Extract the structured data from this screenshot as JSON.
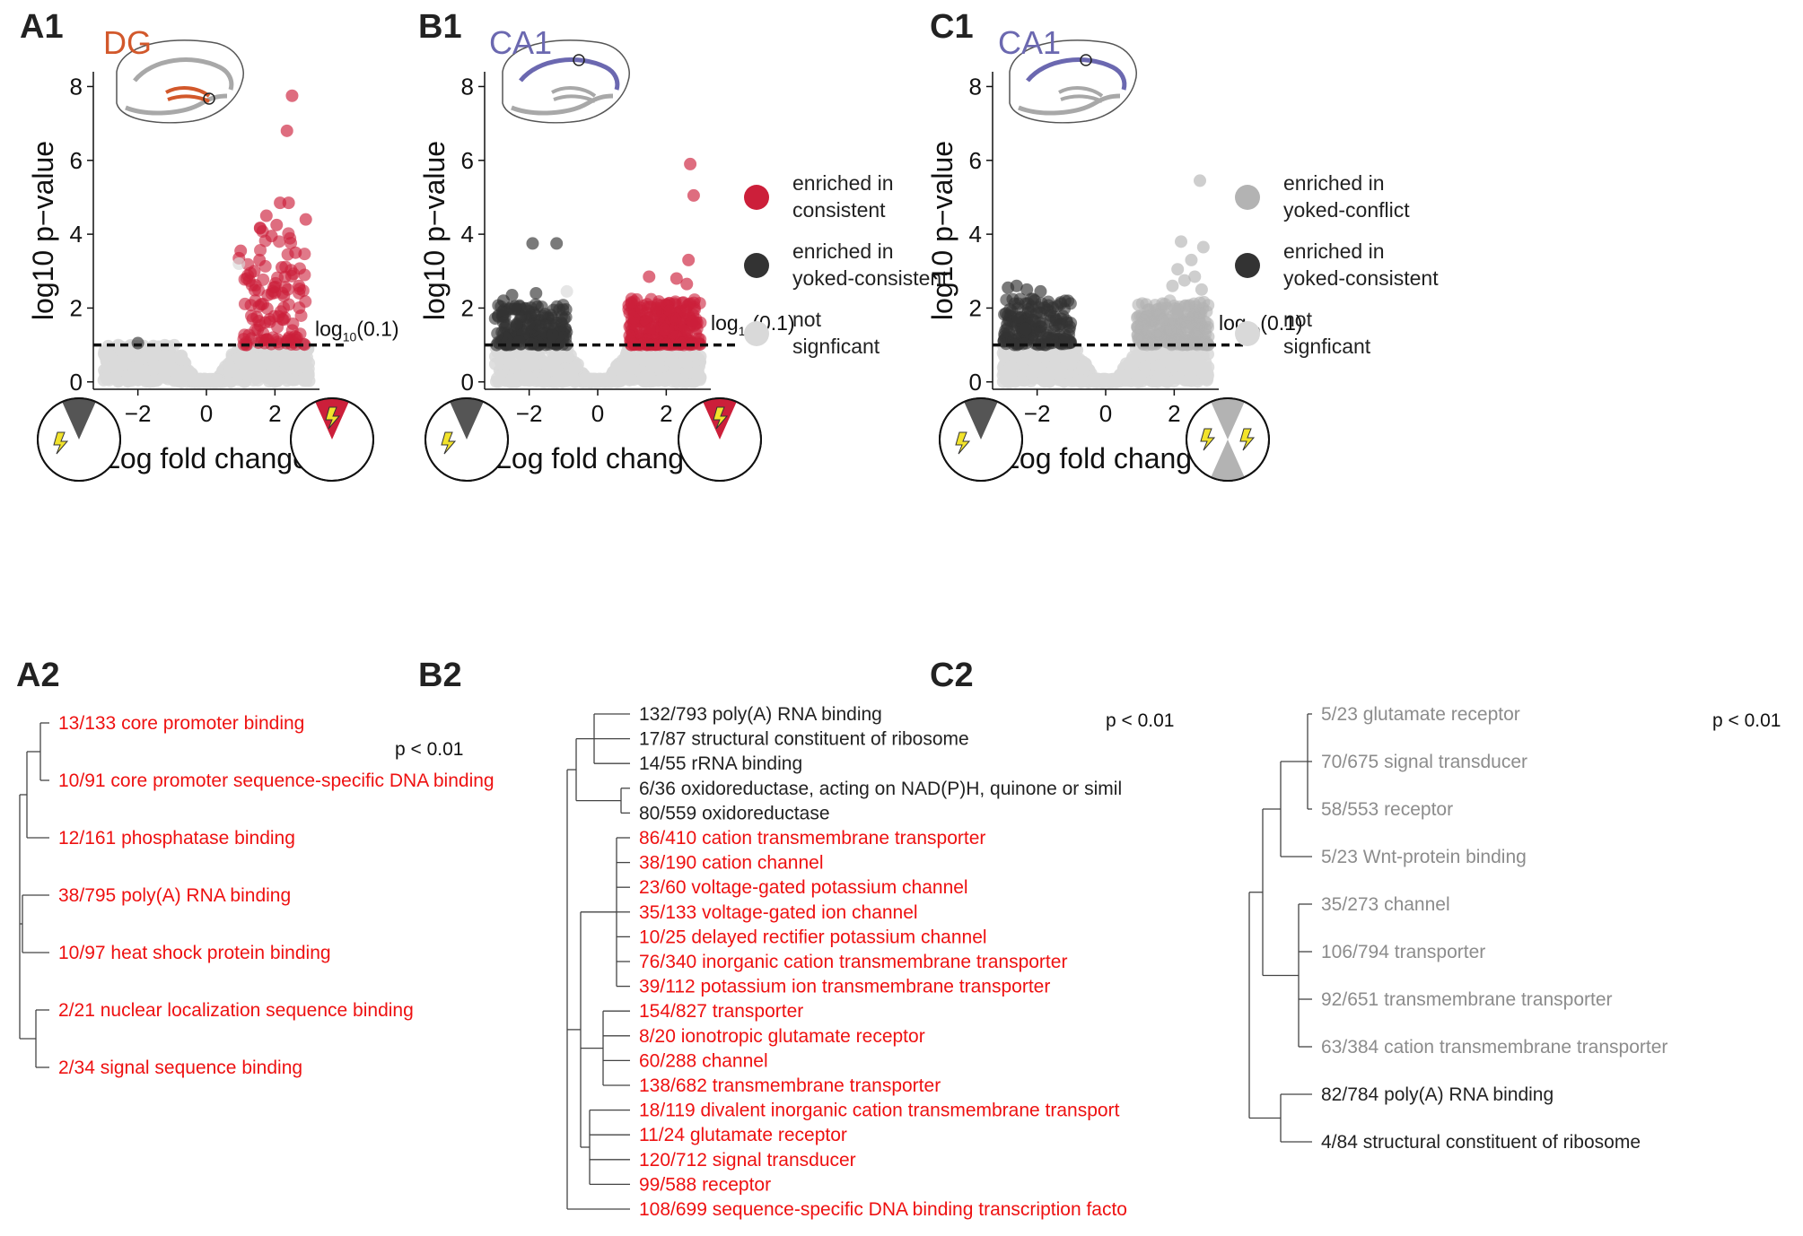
{
  "colors": {
    "red": "#cc1f3a",
    "red_text": "#ee1111",
    "dark": "#333333",
    "light": "#d9d9d9",
    "mid_gray": "#b3b3b3",
    "gray_text": "#8c8c8c",
    "dg": "#d2582b",
    "ca1": "#6b68b0",
    "bolt": "#f2e32b"
  },
  "threshold_label_base": "log",
  "threshold_label_sub": "10",
  "threshold_label_arg": "(0.1)",
  "volcano": [
    {
      "id": "A1",
      "letter": "A1",
      "region": "DG",
      "region_color": "dg",
      "chart_data": {
        "type": "scatter",
        "xlabel": "Log fold change",
        "ylabel": "log10 p−value",
        "xlim": [
          -3.3,
          3.3
        ],
        "ylim": [
          -0.2,
          8.4
        ],
        "xticks": [
          -2,
          0,
          2
        ],
        "yticks": [
          0,
          2,
          4,
          6,
          8
        ],
        "threshold": 1,
        "background": "symmetric-left-right",
        "left_enriched": "none",
        "right_enriched": "red",
        "right_class_cloud": "none",
        "highlighted_points": [
          {
            "x": 2.5,
            "y": 7.75,
            "c": "red"
          },
          {
            "x": 2.35,
            "y": 6.8,
            "c": "red"
          },
          {
            "x": 1.75,
            "y": 4.5,
            "c": "red"
          },
          {
            "x": 2.15,
            "y": 4.85,
            "c": "red"
          },
          {
            "x": 2.4,
            "y": 4.85,
            "c": "red"
          },
          {
            "x": 2.9,
            "y": 4.4,
            "c": "red"
          },
          {
            "x": 1.0,
            "y": 3.55,
            "c": "red"
          },
          {
            "x": 1.55,
            "y": 3.3,
            "c": "red"
          },
          {
            "x": 2.05,
            "y": 4.25,
            "c": "red"
          },
          {
            "x": 2.6,
            "y": 3.5,
            "c": "red"
          },
          {
            "x": 1.9,
            "y": 3.95,
            "c": "red"
          },
          {
            "x": 1.4,
            "y": 3.0,
            "c": "red"
          },
          {
            "x": 2.2,
            "y": 3.1,
            "c": "red"
          },
          {
            "x": 0.95,
            "y": 3.35,
            "c": "red"
          },
          {
            "x": 1.6,
            "y": 2.1,
            "c": "red"
          },
          {
            "x": 2.7,
            "y": 2.6,
            "c": "red"
          },
          {
            "x": -2.0,
            "y": 1.05,
            "c": "dark"
          },
          {
            "x": 0.95,
            "y": 3.2,
            "c": "light"
          }
        ],
        "red_cloud": {
          "xmin": 1.05,
          "xmax": 2.9,
          "ymin": 1.0,
          "ymax": 4.2,
          "n": 110,
          "seed": 11
        },
        "dark_cloud": null,
        "mid_cloud": null
      },
      "legend": null,
      "left_pie": {
        "wedge": "dark",
        "bolt": "left"
      },
      "right_pie": {
        "wedge": "red",
        "bolt": "inside"
      }
    },
    {
      "id": "B1",
      "letter": "B1",
      "region": "CA1",
      "region_color": "ca1",
      "chart_data": {
        "type": "scatter",
        "xlabel": "Log fold change",
        "ylabel": "log10 p−value",
        "xlim": [
          -3.3,
          3.3
        ],
        "ylim": [
          -0.2,
          8.4
        ],
        "xticks": [
          -2,
          0,
          2
        ],
        "yticks": [
          0,
          2,
          4,
          6,
          8
        ],
        "threshold": 1,
        "highlighted_points": [
          {
            "x": 2.7,
            "y": 5.9,
            "c": "red"
          },
          {
            "x": 2.8,
            "y": 5.05,
            "c": "red"
          },
          {
            "x": 2.65,
            "y": 3.3,
            "c": "red"
          },
          {
            "x": 2.3,
            "y": 2.8,
            "c": "red"
          },
          {
            "x": 1.5,
            "y": 2.85,
            "c": "red"
          },
          {
            "x": 2.6,
            "y": 2.65,
            "c": "red"
          },
          {
            "x": 2.9,
            "y": 1.6,
            "c": "red"
          },
          {
            "x": -1.9,
            "y": 3.75,
            "c": "dark"
          },
          {
            "x": -1.2,
            "y": 3.75,
            "c": "dark"
          },
          {
            "x": -2.5,
            "y": 2.35,
            "c": "dark"
          },
          {
            "x": -1.8,
            "y": 2.4,
            "c": "dark"
          },
          {
            "x": -2.75,
            "y": 2.2,
            "c": "dark"
          },
          {
            "x": -0.9,
            "y": 2.45,
            "c": "light"
          }
        ],
        "red_cloud": {
          "xmin": 0.9,
          "xmax": 3.0,
          "ymin": 1.0,
          "ymax": 2.25,
          "n": 260,
          "seed": 23
        },
        "dark_cloud": {
          "xmin": -3.0,
          "xmax": -0.9,
          "ymin": 1.0,
          "ymax": 2.1,
          "n": 200,
          "seed": 31
        },
        "mid_cloud": null
      },
      "legend": {
        "items": [
          {
            "c": "red",
            "line1": "enriched in",
            "line2": "consistent"
          },
          {
            "c": "dark",
            "line1": "enriched in",
            "line2": "yoked-consistent"
          },
          {
            "c": "light",
            "line1": "not",
            "line2": "signficant"
          }
        ]
      },
      "left_pie": {
        "wedge": "dark",
        "bolt": "left"
      },
      "right_pie": {
        "wedge": "red",
        "bolt": "inside"
      }
    },
    {
      "id": "C1",
      "letter": "C1",
      "region": "CA1",
      "region_color": "ca1",
      "chart_data": {
        "type": "scatter",
        "xlabel": "Log fold change",
        "ylabel": "log10 p−value",
        "xlim": [
          -3.3,
          3.3
        ],
        "ylim": [
          -0.2,
          8.4
        ],
        "xticks": [
          -2,
          0,
          2
        ],
        "yticks": [
          0,
          2,
          4,
          6,
          8
        ],
        "threshold": 1,
        "highlighted_points": [
          {
            "x": 2.75,
            "y": 5.45,
            "c": "mid"
          },
          {
            "x": 2.2,
            "y": 3.8,
            "c": "mid"
          },
          {
            "x": 2.85,
            "y": 3.65,
            "c": "mid"
          },
          {
            "x": 2.5,
            "y": 3.3,
            "c": "mid"
          },
          {
            "x": 2.1,
            "y": 3.05,
            "c": "mid"
          },
          {
            "x": 2.6,
            "y": 2.85,
            "c": "mid"
          },
          {
            "x": 1.95,
            "y": 2.6,
            "c": "mid"
          },
          {
            "x": 2.8,
            "y": 2.5,
            "c": "mid"
          },
          {
            "x": 2.3,
            "y": 2.75,
            "c": "mid"
          },
          {
            "x": -2.6,
            "y": 2.6,
            "c": "dark"
          },
          {
            "x": -2.85,
            "y": 2.55,
            "c": "dark"
          },
          {
            "x": -1.9,
            "y": 2.45,
            "c": "dark"
          },
          {
            "x": -2.3,
            "y": 2.5,
            "c": "dark"
          }
        ],
        "red_cloud": null,
        "dark_cloud": {
          "xmin": -3.0,
          "xmax": -1.0,
          "ymin": 1.0,
          "ymax": 2.25,
          "n": 170,
          "seed": 41
        },
        "mid_cloud": {
          "xmin": 0.9,
          "xmax": 3.0,
          "ymin": 1.0,
          "ymax": 2.2,
          "n": 230,
          "seed": 53
        }
      },
      "legend": {
        "items": [
          {
            "c": "mid",
            "line1": "enriched in",
            "line2": "yoked-conflict"
          },
          {
            "c": "dark",
            "line1": "enriched in",
            "line2": "yoked-consistent"
          },
          {
            "c": "light",
            "line1": "not",
            "line2": "signficant"
          }
        ]
      },
      "left_pie": {
        "wedge": "dark",
        "bolt": "left"
      },
      "right_pie": {
        "wedge": "mid-double",
        "bolt": "both"
      }
    }
  ],
  "go": [
    {
      "id": "A2",
      "letter": "A2",
      "pval": "p < 0.01",
      "terms": [
        {
          "t": "13/133 core promoter binding",
          "c": "red"
        },
        {
          "t": "10/91 core promoter sequence-specific DNA binding",
          "c": "red"
        },
        {
          "t": "12/161 phosphatase binding",
          "c": "red"
        },
        {
          "t": "38/795 poly(A) RNA binding",
          "c": "red"
        },
        {
          "t": "10/97 heat shock protein binding",
          "c": "red"
        },
        {
          "t": "2/21 nuclear localization sequence binding",
          "c": "red"
        },
        {
          "t": "2/34 signal sequence binding",
          "c": "red"
        }
      ]
    },
    {
      "id": "B2",
      "letter": "B2",
      "pval": "p < 0.01",
      "terms": [
        {
          "t": "132/793 poly(A) RNA binding",
          "c": "dark"
        },
        {
          "t": "17/87 structural constituent of ribosome",
          "c": "dark"
        },
        {
          "t": "14/55 rRNA binding",
          "c": "dark"
        },
        {
          "t": "6/36 oxidoreductase, acting on NAD(P)H, quinone or simil",
          "c": "dark"
        },
        {
          "t": "80/559 oxidoreductase",
          "c": "dark"
        },
        {
          "t": "86/410 cation transmembrane transporter",
          "c": "red"
        },
        {
          "t": "38/190 cation channel",
          "c": "red"
        },
        {
          "t": "23/60 voltage-gated potassium channel",
          "c": "red"
        },
        {
          "t": "35/133 voltage-gated ion channel",
          "c": "red"
        },
        {
          "t": "10/25 delayed rectifier potassium channel",
          "c": "red"
        },
        {
          "t": "76/340 inorganic cation transmembrane transporter",
          "c": "red"
        },
        {
          "t": "39/112 potassium ion transmembrane transporter",
          "c": "red"
        },
        {
          "t": "154/827 transporter",
          "c": "red"
        },
        {
          "t": "8/20 ionotropic glutamate receptor",
          "c": "red"
        },
        {
          "t": "60/288 channel",
          "c": "red"
        },
        {
          "t": "138/682 transmembrane transporter",
          "c": "red"
        },
        {
          "t": "18/119 divalent inorganic cation transmembrane transport",
          "c": "red"
        },
        {
          "t": "11/24 glutamate receptor",
          "c": "red"
        },
        {
          "t": "120/712 signal transducer",
          "c": "red"
        },
        {
          "t": "99/588 receptor",
          "c": "red"
        },
        {
          "t": "108/699 sequence-specific DNA binding transcription facto",
          "c": "red"
        }
      ]
    },
    {
      "id": "C2",
      "letter": "C2",
      "pval": "p < 0.01",
      "terms": [
        {
          "t": "5/23 glutamate receptor",
          "c": "gray"
        },
        {
          "t": "70/675 signal transducer",
          "c": "gray"
        },
        {
          "t": "58/553 receptor",
          "c": "gray"
        },
        {
          "t": "5/23 Wnt-protein binding",
          "c": "gray"
        },
        {
          "t": "35/273 channel",
          "c": "gray"
        },
        {
          "t": "106/794 transporter",
          "c": "gray"
        },
        {
          "t": "92/651 transmembrane transporter",
          "c": "gray"
        },
        {
          "t": "63/384 cation transmembrane transporter",
          "c": "gray"
        },
        {
          "t": "82/784 poly(A) RNA binding",
          "c": "dark"
        },
        {
          "t": "4/84 structural constituent of ribosome",
          "c": "dark"
        }
      ]
    }
  ]
}
